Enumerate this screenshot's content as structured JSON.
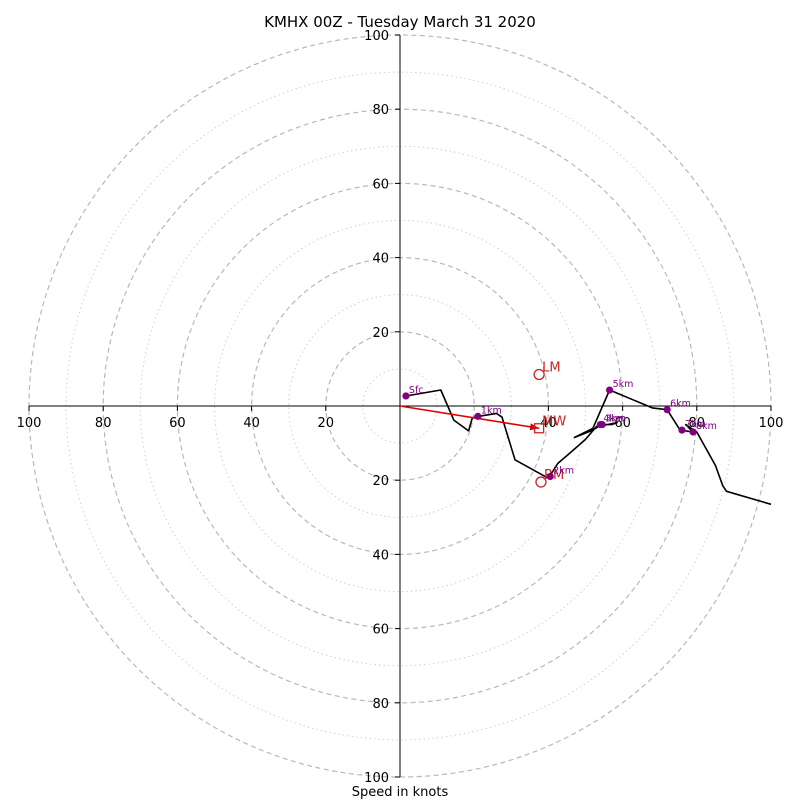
{
  "chart_data": {
    "type": "hodograph",
    "title": "KMHX 00Z - Tuesday March 31 2020",
    "xlabel": "Speed in knots",
    "range": 100,
    "rings": [
      20,
      40,
      60,
      80,
      100
    ],
    "minor_rings": [
      10,
      30,
      50,
      70,
      90
    ],
    "x_tick_labels": [
      {
        "v": -100,
        "label": "100"
      },
      {
        "v": -80,
        "label": "80"
      },
      {
        "v": -60,
        "label": "60"
      },
      {
        "v": -40,
        "label": "40"
      },
      {
        "v": -20,
        "label": "20"
      },
      {
        "v": 40,
        "label": "40"
      },
      {
        "v": 60,
        "label": "60"
      },
      {
        "v": 80,
        "label": "80"
      },
      {
        "v": 100,
        "label": "100"
      }
    ],
    "y_tick_labels": [
      {
        "v": 100,
        "label": "100"
      },
      {
        "v": 80,
        "label": "80"
      },
      {
        "v": 60,
        "label": "60"
      },
      {
        "v": 40,
        "label": "40"
      },
      {
        "v": 20,
        "label": "20"
      },
      {
        "v": -20,
        "label": "20"
      },
      {
        "v": -40,
        "label": "40"
      },
      {
        "v": -60,
        "label": "60"
      },
      {
        "v": -80,
        "label": "80"
      },
      {
        "v": -100,
        "label": "100"
      }
    ],
    "trace": [
      [
        1.6,
        2.7
      ],
      [
        11,
        4.3
      ],
      [
        14.5,
        -3.8
      ],
      [
        18.5,
        -6.7
      ],
      [
        19.5,
        -3.2
      ],
      [
        21,
        -2.8
      ],
      [
        26,
        -2
      ],
      [
        27.5,
        -3
      ],
      [
        31,
        -14.5
      ],
      [
        40,
        -19.5
      ],
      [
        42.5,
        -15.5
      ],
      [
        46,
        -12.5
      ],
      [
        50,
        -9
      ],
      [
        53,
        -5.5
      ],
      [
        54.5,
        -5
      ],
      [
        57,
        -5
      ],
      [
        58.5,
        -4.5
      ],
      [
        53.5,
        -5.5
      ],
      [
        52,
        -6.5
      ],
      [
        47,
        -8.5
      ],
      [
        52,
        -6
      ],
      [
        56.5,
        4.3
      ],
      [
        68,
        -0.5
      ],
      [
        72,
        -1
      ],
      [
        75.5,
        -6.5
      ],
      [
        79,
        -7
      ],
      [
        77,
        -5
      ],
      [
        80,
        -7
      ],
      [
        85,
        -16
      ],
      [
        87,
        -21.5
      ],
      [
        88,
        -23
      ],
      [
        100,
        -26.5
      ]
    ],
    "levels": [
      {
        "label": "Sfc",
        "u": 1.6,
        "v": 2.7
      },
      {
        "label": "1km",
        "u": 21,
        "v": -2.8
      },
      {
        "label": "2km",
        "u": 40.5,
        "v": -19
      },
      {
        "label": "3km",
        "u": 54.5,
        "v": -5
      },
      {
        "label": "4km",
        "u": 54,
        "v": -5
      },
      {
        "label": "5km",
        "u": 56.5,
        "v": 4.3
      },
      {
        "label": "6km",
        "u": 72,
        "v": -1
      },
      {
        "label": "7km",
        "u": 76,
        "v": -6.5
      },
      {
        "label": "8km",
        "u": 79,
        "v": -7
      }
    ],
    "markers": [
      {
        "label": "LM",
        "u": 37.5,
        "v": 8.5,
        "shape": "circle"
      },
      {
        "label": "RM",
        "u": 38,
        "v": -20.5,
        "shape": "circle"
      },
      {
        "label": "MW",
        "u": 37.5,
        "v": -6,
        "shape": "square"
      }
    ],
    "shear_vector": {
      "from": [
        0,
        0
      ],
      "to": [
        37.5,
        -6
      ]
    },
    "colors": {
      "trace": "#000000",
      "levels": "#800080",
      "markers": "#cc2222",
      "grid": "#b8b8b8",
      "axes": "#000000"
    }
  }
}
